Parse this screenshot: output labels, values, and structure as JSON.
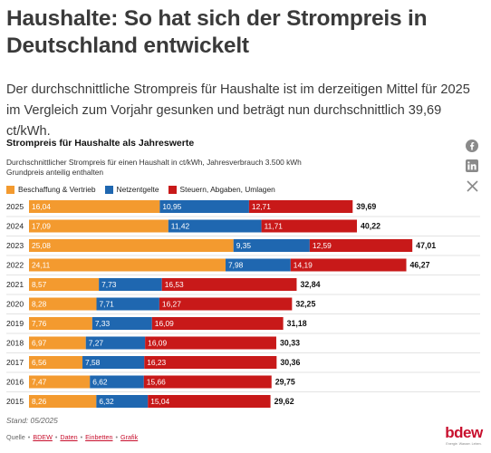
{
  "headline": "Haushalte: So hat sich der Strompreis in Deutschland entwickelt",
  "lead": "Der durchschnittliche Strompreis für Haushalte ist im derzeitigen Mittel für 2025 im Vergleich zum Vorjahr gesunken und beträgt nun durchschnittlich 39,69 ct/kWh.",
  "share_icons": [
    "facebook-icon",
    "linkedin-icon",
    "x-icon"
  ],
  "chart_title": "Strompreis für Haushalte als Jahreswerte",
  "chart_subtitle_1": "Durchschnittlicher Strompreis für einen Haushalt in ct/kWh, Jahresverbrauch 3.500 kWh",
  "chart_subtitle_2": "Grundpreis anteilig enthalten",
  "stand": "Stand: 05/2025",
  "source": {
    "label": "Quelle",
    "links": [
      "BDEW",
      "Daten",
      "Einbetten",
      "Grafik"
    ]
  },
  "logo": {
    "word": "bdew",
    "tagline": "Energie. Wasser. Leben."
  },
  "colors": {
    "beschaffung": "#f39a2f",
    "netz": "#1f67b0",
    "steuern": "#c81919",
    "red_accent": "#c8102e"
  },
  "chart_data": {
    "type": "bar",
    "orientation": "horizontal",
    "stacked": true,
    "categories": [
      "2025",
      "2024",
      "2023",
      "2022",
      "2021",
      "2020",
      "2019",
      "2018",
      "2017",
      "2016",
      "2015"
    ],
    "series": [
      {
        "name": "Beschaffung & Vertrieb",
        "color": "#f39a2f",
        "values": [
          16.04,
          17.09,
          25.08,
          24.11,
          8.57,
          8.28,
          7.76,
          6.97,
          6.56,
          7.47,
          8.26
        ],
        "labels": [
          "16,04",
          "17,09",
          "25,08",
          "24,11",
          "8,57",
          "8,28",
          "7,76",
          "6,97",
          "6,56",
          "7,47",
          "8,26"
        ]
      },
      {
        "name": "Netzentgelte",
        "color": "#1f67b0",
        "values": [
          10.95,
          11.42,
          9.35,
          7.98,
          7.73,
          7.71,
          7.33,
          7.27,
          7.58,
          6.62,
          6.32
        ],
        "labels": [
          "10,95",
          "11,42",
          "9,35",
          "7,98",
          "7,73",
          "7,71",
          "7,33",
          "7,27",
          "7,58",
          "6,62",
          "6,32"
        ]
      },
      {
        "name": "Steuern, Abgaben, Umlagen",
        "color": "#c81919",
        "values": [
          12.71,
          11.71,
          12.59,
          14.19,
          16.53,
          16.27,
          16.09,
          16.09,
          16.23,
          15.66,
          15.04
        ],
        "labels": [
          "12,71",
          "11,71",
          "12,59",
          "14,19",
          "16,53",
          "16,27",
          "16,09",
          "16,09",
          "16,23",
          "15,66",
          "15,04"
        ]
      }
    ],
    "totals": [
      39.69,
      40.22,
      47.01,
      46.27,
      32.84,
      32.25,
      31.18,
      30.33,
      30.36,
      29.75,
      29.62
    ],
    "total_labels": [
      "39,69",
      "40,22",
      "47,01",
      "46,27",
      "32,84",
      "32,25",
      "31,18",
      "30,33",
      "30,36",
      "29,75",
      "29,62"
    ],
    "legend_position": "top-left",
    "grid": false
  }
}
